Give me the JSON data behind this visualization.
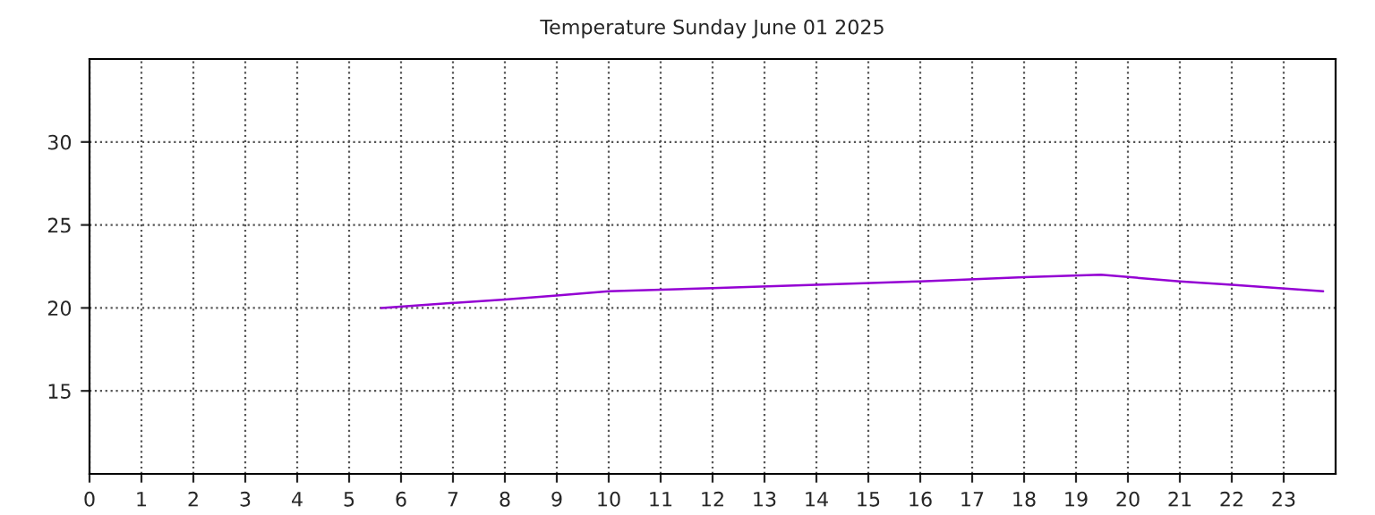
{
  "chart_data": {
    "type": "line",
    "title": "Temperature Sunday June 01 2025",
    "series": [
      {
        "color": "#9400d3",
        "x": [
          5.62,
          7,
          8,
          9,
          10,
          12,
          14,
          16,
          18,
          19.48,
          21,
          22,
          23.76
        ],
        "values": [
          20.0,
          20.3,
          20.5,
          20.75,
          21.0,
          21.2,
          21.4,
          21.6,
          21.85,
          22.0,
          21.6,
          21.4,
          21.0
        ]
      }
    ],
    "xlim": [
      0,
      24
    ],
    "xticks": [
      0,
      1,
      2,
      3,
      4,
      5,
      6,
      7,
      8,
      9,
      10,
      11,
      12,
      13,
      14,
      15,
      16,
      17,
      18,
      19,
      20,
      21,
      22,
      23
    ],
    "ylim": [
      10,
      35
    ],
    "yticks": [
      15,
      20,
      25,
      30
    ],
    "grid": true,
    "marker": "none",
    "line_style": "solid"
  }
}
